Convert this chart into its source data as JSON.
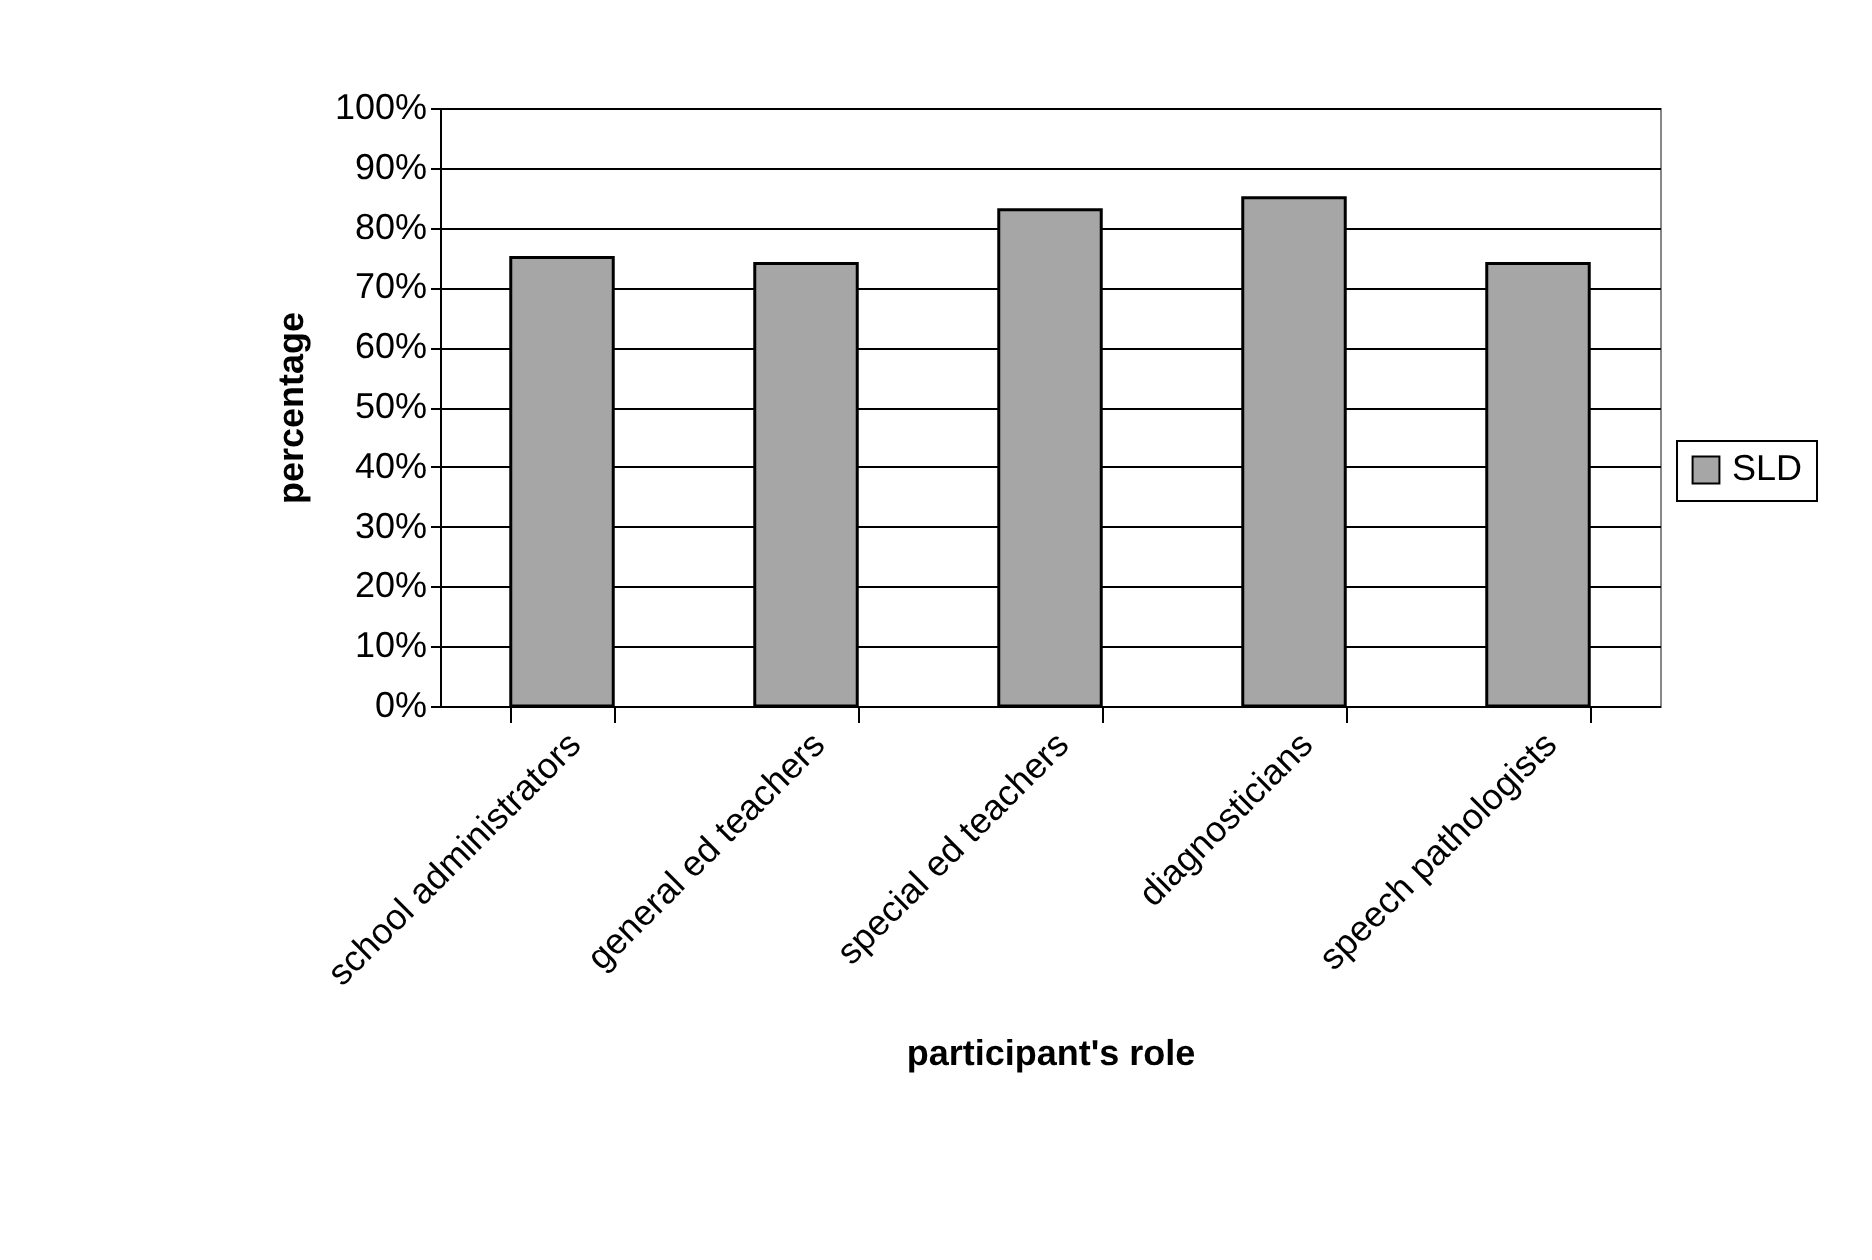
{
  "chart_data": {
    "type": "bar",
    "xlabel": "participant's role",
    "ylabel": "percentage",
    "categories": [
      "school administrators",
      "general ed teachers",
      "special ed teachers",
      "diagnosticians",
      "speech pathologists"
    ],
    "series": [
      {
        "name": "SLD",
        "color": "#a6a6a6",
        "values": [
          75,
          74,
          83,
          85,
          74
        ]
      }
    ],
    "ylim": [
      0,
      100
    ],
    "yticks": [
      {
        "value": 0,
        "label": "0%"
      },
      {
        "value": 10,
        "label": "10%"
      },
      {
        "value": 20,
        "label": "20%"
      },
      {
        "value": 30,
        "label": "30%"
      },
      {
        "value": 40,
        "label": "40%"
      },
      {
        "value": 50,
        "label": "50%"
      },
      {
        "value": 60,
        "label": "60%"
      },
      {
        "value": 70,
        "label": "70%"
      },
      {
        "value": 80,
        "label": "80%"
      },
      {
        "value": 90,
        "label": "90%"
      },
      {
        "value": 100,
        "label": "100%"
      }
    ],
    "grid": "y",
    "legend": "right"
  }
}
